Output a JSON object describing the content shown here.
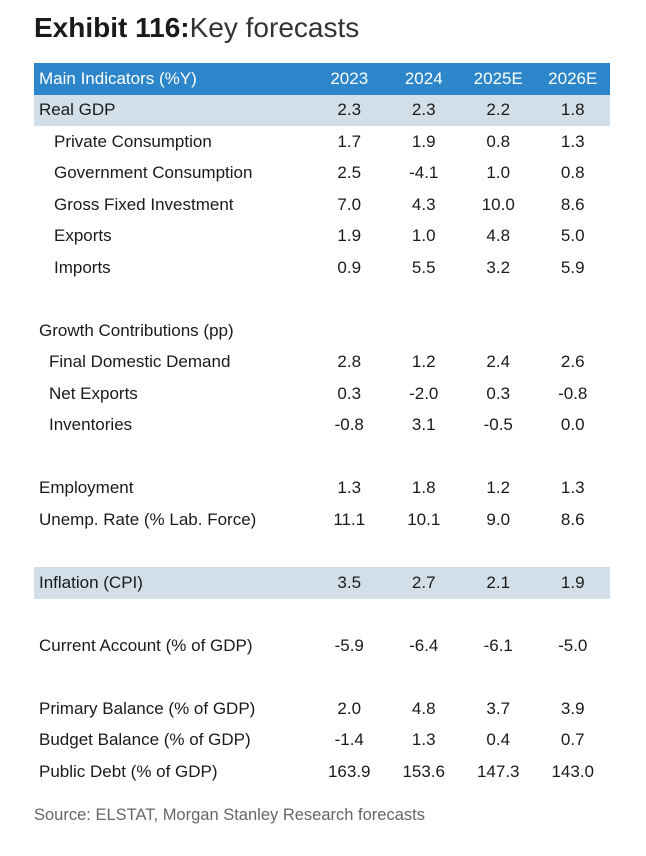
{
  "title": {
    "bold": "Exhibit 116:",
    "light": "Key forecasts"
  },
  "table": {
    "headers": [
      "Main Indicators (%Y)",
      "2023",
      "2024",
      "2025E",
      "2026E"
    ],
    "rows": [
      {
        "label": "Real GDP",
        "values": [
          "2.3",
          "2.3",
          "2.2",
          "1.8"
        ]
      },
      {
        "label": "Private Consumption",
        "values": [
          "1.7",
          "1.9",
          "0.8",
          "1.3"
        ]
      },
      {
        "label": "Government Consumption",
        "values": [
          "2.5",
          "-4.1",
          "1.0",
          "0.8"
        ]
      },
      {
        "label": "Gross Fixed Investment",
        "values": [
          "7.0",
          "4.3",
          "10.0",
          "8.6"
        ]
      },
      {
        "label": "Exports",
        "values": [
          "1.9",
          "1.0",
          "4.8",
          "5.0"
        ]
      },
      {
        "label": "Imports",
        "values": [
          "0.9",
          "5.5",
          "3.2",
          "5.9"
        ]
      },
      {
        "label": "",
        "values": [
          "",
          "",
          "",
          ""
        ]
      },
      {
        "label": "Growth Contributions (pp)",
        "values": [
          "",
          "",
          "",
          ""
        ]
      },
      {
        "label": "Final Domestic Demand",
        "values": [
          "2.8",
          "1.2",
          "2.4",
          "2.6"
        ]
      },
      {
        "label": "Net Exports",
        "values": [
          "0.3",
          "-2.0",
          "0.3",
          "-0.8"
        ]
      },
      {
        "label": "Inventories",
        "values": [
          "-0.8",
          "3.1",
          "-0.5",
          "0.0"
        ]
      },
      {
        "label": "",
        "values": [
          "",
          "",
          "",
          ""
        ]
      },
      {
        "label": "Employment",
        "values": [
          "1.3",
          "1.8",
          "1.2",
          "1.3"
        ]
      },
      {
        "label": "Unemp. Rate (% Lab. Force)",
        "values": [
          "11.1",
          "10.1",
          "9.0",
          "8.6"
        ]
      },
      {
        "label": "",
        "values": [
          "",
          "",
          "",
          ""
        ]
      },
      {
        "label": "Inflation (CPI)",
        "values": [
          "3.5",
          "2.7",
          "2.1",
          "1.9"
        ]
      },
      {
        "label": "",
        "values": [
          "",
          "",
          "",
          ""
        ]
      },
      {
        "label": "Current Account (% of GDP)",
        "values": [
          "-5.9",
          "-6.4",
          "-6.1",
          "-5.0"
        ]
      },
      {
        "label": "",
        "values": [
          "",
          "",
          "",
          ""
        ]
      },
      {
        "label": "Primary Balance (% of GDP)",
        "values": [
          "2.0",
          "4.8",
          "3.7",
          "3.9"
        ]
      },
      {
        "label": "Budget Balance (% of GDP)",
        "values": [
          "-1.4",
          "1.3",
          "0.4",
          "0.7"
        ]
      },
      {
        "label": "Public Debt (% of GDP)",
        "values": [
          "163.9",
          "153.6",
          "147.3",
          "143.0"
        ]
      }
    ]
  },
  "source": "Source: ELSTAT, Morgan Stanley Research forecasts"
}
